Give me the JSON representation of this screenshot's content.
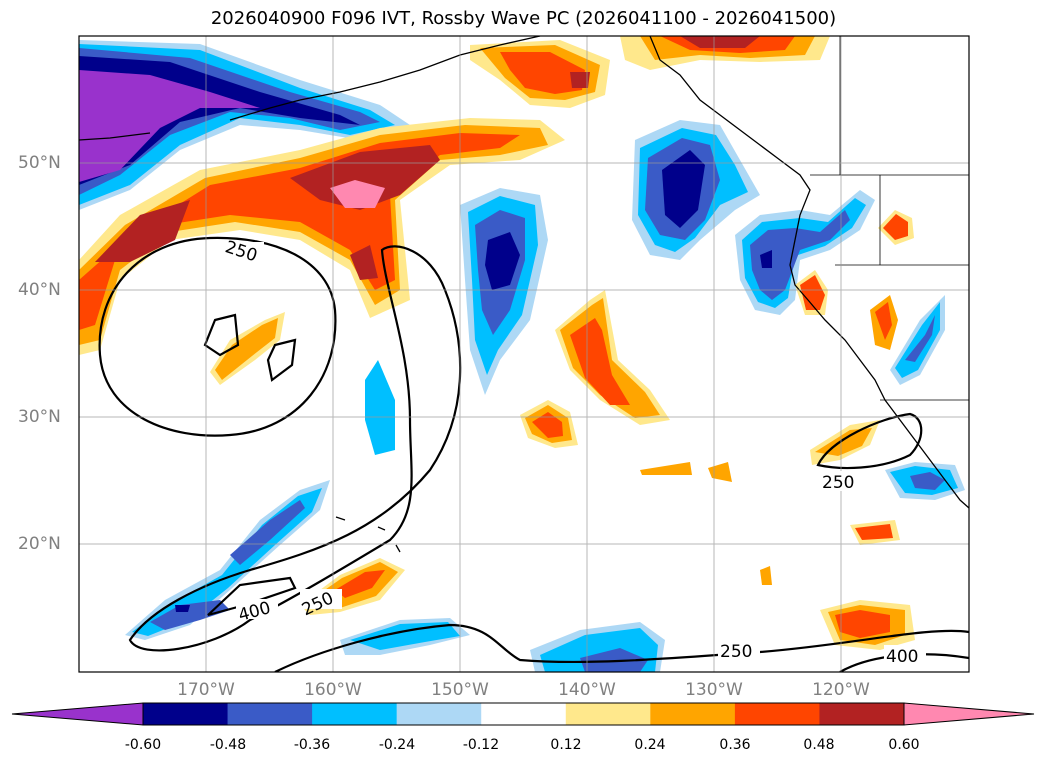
{
  "title": "2026040900 F096 IVT, Rossby Wave PC (2026041100 - 2026041500)",
  "lon_labels": [
    "170°W",
    "160°W",
    "150°W",
    "140°W",
    "130°W",
    "120°W"
  ],
  "lat_labels": [
    "50°N",
    "40°N",
    "30°N",
    "20°N"
  ],
  "contour_labels": [
    "250",
    "400",
    "250",
    "250",
    "250",
    "400"
  ],
  "colorbar": {
    "levels": [
      "-0.60",
      "-0.48",
      "-0.36",
      "-0.24",
      "-0.12",
      "0.12",
      "0.24",
      "0.36",
      "0.48",
      "0.60"
    ],
    "colors": [
      "#9932cc",
      "#00008b",
      "#3a5bc7",
      "#00bfff",
      "#add8f5",
      "#ffffff",
      "#ffe88c",
      "#ffa500",
      "#ff4500",
      "#b22222",
      "#ff88b0"
    ]
  },
  "colors": {
    "purple": "#9932cc",
    "navy": "#00008b",
    "blue": "#3a5bc7",
    "sky": "#00bfff",
    "light_blue": "#add8f5",
    "pale_yellow": "#ffe88c",
    "orange": "#ffa500",
    "red_orange": "#ff4500",
    "dark_red": "#b22222",
    "pink": "#ff88b0"
  }
}
